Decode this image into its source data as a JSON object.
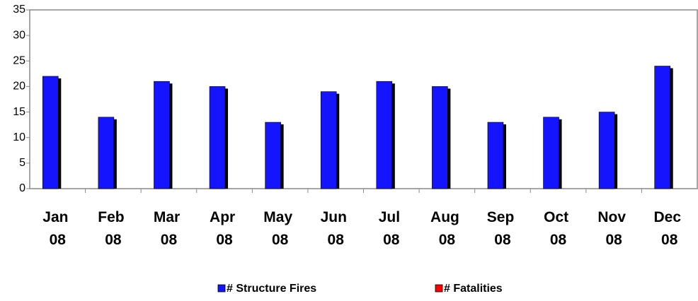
{
  "chart_data": {
    "type": "bar",
    "categories": [
      "Jan 08",
      "Feb 08",
      "Mar 08",
      "Apr 08",
      "May 08",
      "Jun 08",
      "Jul 08",
      "Aug 08",
      "Sep 08",
      "Oct 08",
      "Nov 08",
      "Dec 08"
    ],
    "series": [
      {
        "name": "# Structure Fires",
        "color": "#1414ff",
        "values": [
          22,
          14,
          21,
          20,
          13,
          19,
          21,
          20,
          13,
          14,
          15,
          24
        ]
      },
      {
        "name": "# Fatalities",
        "color": "#ff0000",
        "values": [
          0,
          0,
          0,
          0,
          0,
          0,
          0,
          0,
          0,
          0,
          0,
          0
        ]
      }
    ],
    "ylim": [
      0,
      35
    ],
    "yticks": [
      0,
      5,
      10,
      15,
      20,
      25,
      30,
      35
    ],
    "grid": false,
    "legend": "bottom"
  }
}
